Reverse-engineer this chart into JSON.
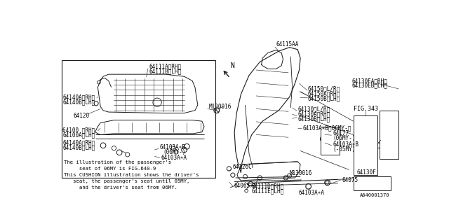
{
  "bg_color": "#ffffff",
  "line_color": "#1a1a1a",
  "fig_number": "A640001370",
  "small_labels_fontsize": 5.5,
  "note_fontsize": 5.2,
  "note_lines": [
    "The illustration of the passenger's",
    "     seat of 06MY is FIG.640-9",
    "This CUSHION illustration shows the driver's",
    "   seat, the passenger's seat until 05MY,",
    "     and the driver's seat from 06MY."
  ]
}
